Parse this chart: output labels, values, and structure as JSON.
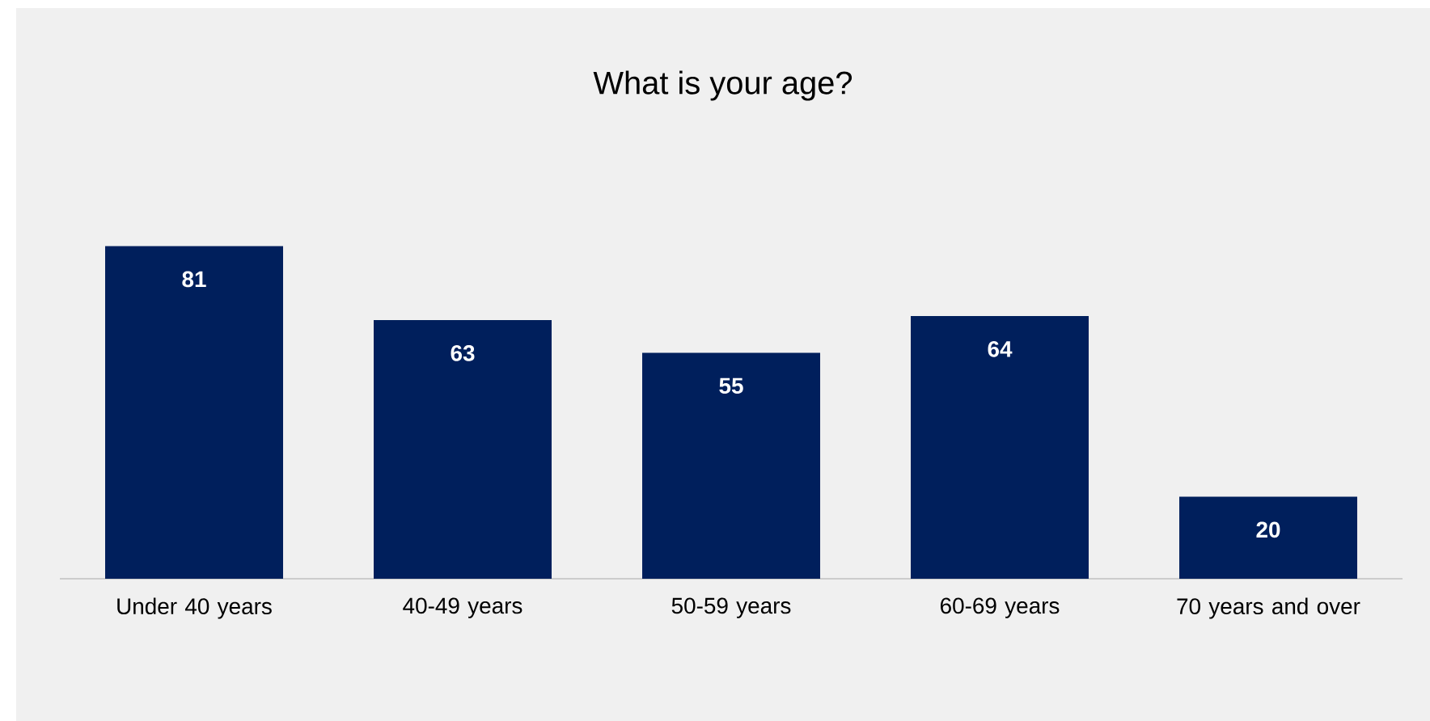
{
  "chart_data": {
    "type": "bar",
    "title": "What is your age?",
    "categories": [
      "Under 40 years",
      "40-49 years",
      "50-59 years",
      "60-69 years",
      "70 years and over"
    ],
    "values": [
      81,
      63,
      55,
      64,
      20
    ],
    "color": "#001f5c",
    "data_labels": true
  }
}
